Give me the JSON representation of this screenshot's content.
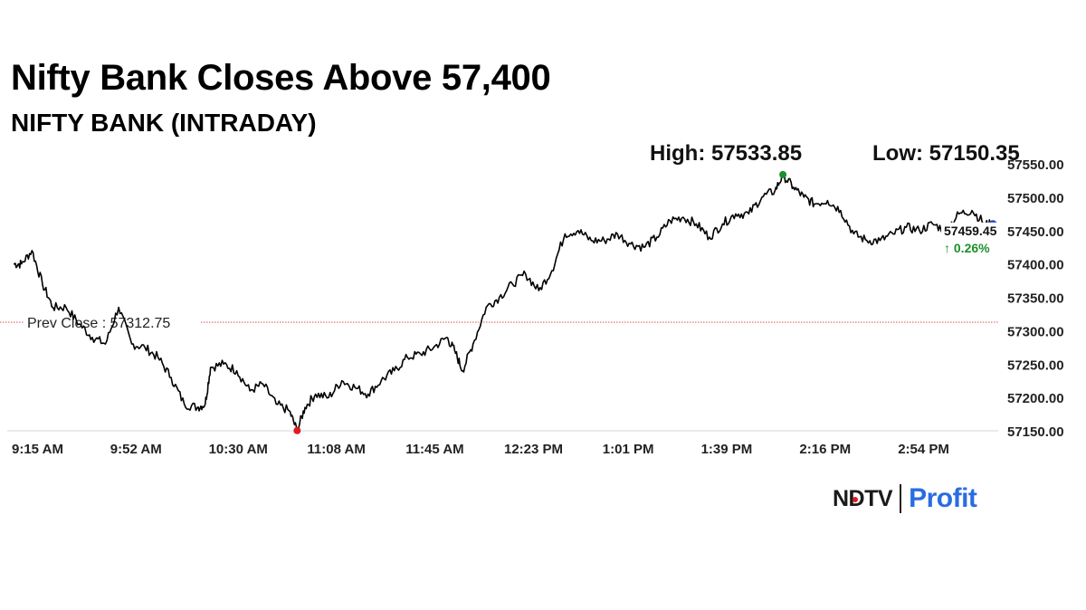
{
  "headline": "Nifty Bank Closes Above 57,400",
  "chart_data": {
    "type": "line",
    "title": "NIFTY BANK (INTRADAY)",
    "stats": {
      "high_text": "High: 57533.85",
      "low_text": "Low: 57150.35"
    },
    "xlabel": "",
    "ylabel": "",
    "x_ticks": [
      "9:15 AM",
      "9:52 AM",
      "10:30 AM",
      "11:08 AM",
      "11:45 AM",
      "12:23 PM",
      "1:01 PM",
      "1:39 PM",
      "2:16 PM",
      "2:54 PM"
    ],
    "y_ticks": [
      "57150.00",
      "57200.00",
      "57250.00",
      "57300.00",
      "57350.00",
      "57400.00",
      "57450.00",
      "57500.00",
      "57550.00"
    ],
    "ylim": [
      57150,
      57550
    ],
    "grid": false,
    "series": [
      {
        "x": [
          "09:15",
          "09:18",
          "09:22",
          "09:26",
          "09:30",
          "09:35",
          "09:40",
          "09:45",
          "09:50",
          "09:55",
          "10:00",
          "10:05",
          "10:10",
          "10:15",
          "10:20",
          "10:25",
          "10:28",
          "10:30",
          "10:35",
          "10:40",
          "10:45",
          "10:50",
          "10:55",
          "11:00",
          "11:03",
          "11:06",
          "11:10",
          "11:15",
          "11:20",
          "11:25",
          "11:30",
          "11:35",
          "11:40",
          "11:45",
          "11:50",
          "11:55",
          "12:00",
          "12:03",
          "12:06",
          "12:10",
          "12:15",
          "12:20",
          "12:25",
          "12:30",
          "12:35",
          "12:40",
          "12:45",
          "12:50",
          "12:55",
          "13:00",
          "13:05",
          "13:10",
          "13:15",
          "13:20",
          "13:25",
          "13:30",
          "13:35",
          "13:40",
          "13:45",
          "13:50",
          "13:55",
          "14:00",
          "14:05",
          "14:08",
          "14:12",
          "14:16",
          "14:20",
          "14:25",
          "14:30",
          "14:35",
          "14:40",
          "14:45",
          "14:50",
          "14:55",
          "15:00",
          "15:05",
          "15:10",
          "15:15",
          "15:20",
          "15:25",
          "15:28"
        ],
        "values": [
          57400,
          57400,
          57420,
          57370,
          57335,
          57335,
          57310,
          57290,
          57280,
          57335,
          57280,
          57275,
          57260,
          57230,
          57190,
          57185,
          57190,
          57245,
          57250,
          57240,
          57210,
          57220,
          57190,
          57180,
          57150,
          57185,
          57205,
          57200,
          57225,
          57215,
          57205,
          57225,
          57240,
          57260,
          57265,
          57275,
          57290,
          57270,
          57240,
          57280,
          57335,
          57350,
          57370,
          57385,
          57360,
          57390,
          57445,
          57450,
          57435,
          57435,
          57445,
          57430,
          57425,
          57440,
          57465,
          57470,
          57460,
          57440,
          57460,
          57475,
          57475,
          57500,
          57510,
          57533,
          57515,
          57500,
          57490,
          57495,
          57480,
          57445,
          57435,
          57435,
          57445,
          57455,
          57450,
          57460,
          57450,
          57475,
          57480,
          57460,
          57459
        ],
        "color": "#000000"
      }
    ],
    "prev_close": {
      "label": "Prev Close : 57312.75",
      "value": 57312.75,
      "color": "#d9534f"
    },
    "high_point": {
      "time": "14:08",
      "value": 57533.85,
      "color": "#1e8f2a"
    },
    "low_point": {
      "time": "11:03",
      "value": 57150.35,
      "color": "#e01b22"
    },
    "last_point": {
      "time": "15:28",
      "value": 57459.45,
      "color": "#1f3cc6"
    },
    "last_label": "57459.45",
    "change_label": "↑ 0.26%",
    "change_color": "#1e8f2a"
  },
  "logo": {
    "ndtv": "NDTV",
    "profit": "Profit"
  }
}
